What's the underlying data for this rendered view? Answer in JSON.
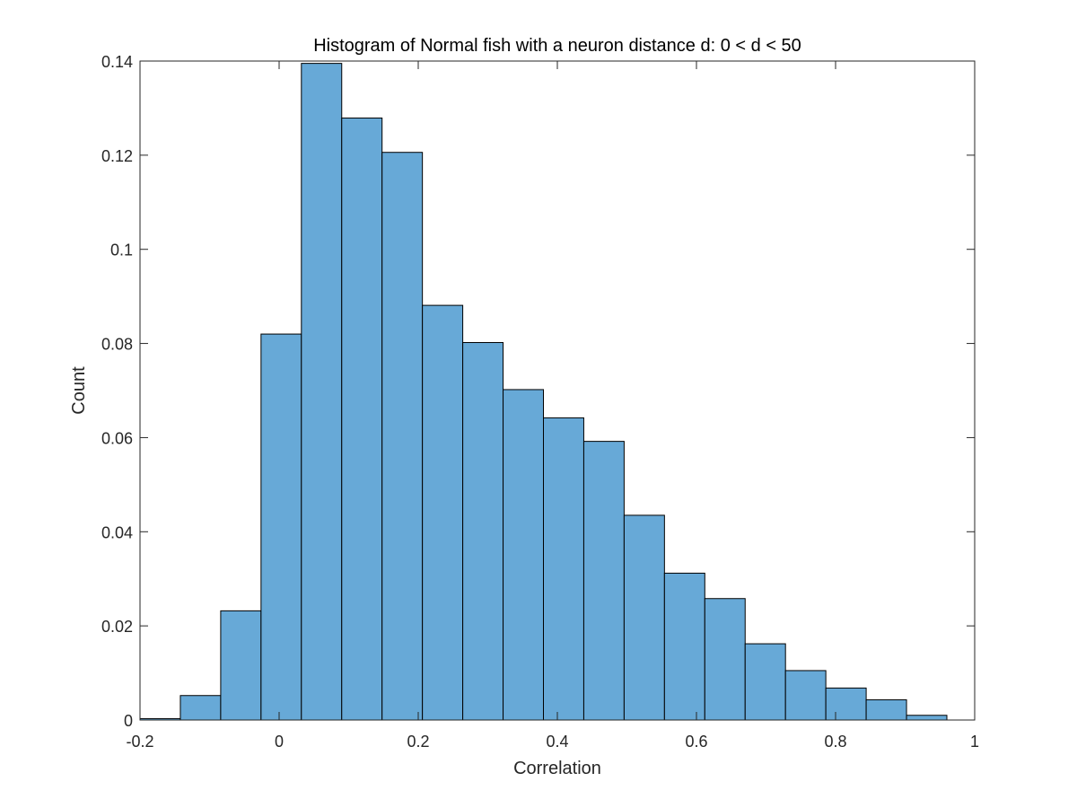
{
  "chart_data": {
    "type": "bar",
    "title": "Histogram of Normal fish with a neuron distance d: 0 < d < 50",
    "xlabel": "Correlation",
    "ylabel": "Count",
    "xlim": [
      -0.2,
      1
    ],
    "ylim": [
      0,
      0.14
    ],
    "grid": false,
    "bin_edges": [
      -0.2,
      -0.142,
      -0.084,
      -0.026,
      0.032,
      0.09,
      0.148,
      0.206,
      0.264,
      0.322,
      0.38,
      0.438,
      0.496,
      0.554,
      0.612,
      0.67,
      0.728,
      0.786,
      0.844,
      0.902,
      0.96
    ],
    "values": [
      0.0003,
      0.0052,
      0.0232,
      0.082,
      0.1395,
      0.1279,
      0.1206,
      0.0881,
      0.0802,
      0.0702,
      0.0642,
      0.0592,
      0.0435,
      0.0312,
      0.0258,
      0.0162,
      0.0105,
      0.0068,
      0.0043,
      0.001
    ],
    "xticks": [
      -0.2,
      0,
      0.2,
      0.4,
      0.6,
      0.8,
      1
    ],
    "xtick_labels": [
      "-0.2",
      "0",
      "0.2",
      "0.4",
      "0.6",
      "0.8",
      "1"
    ],
    "yticks": [
      0,
      0.02,
      0.04,
      0.06,
      0.08,
      0.1,
      0.12,
      0.14
    ],
    "ytick_labels": [
      "0",
      "0.02",
      "0.04",
      "0.06",
      "0.08",
      "0.1",
      "0.12",
      "0.14"
    ],
    "bar_color": "#67a9d7",
    "edge_color": "#000000"
  }
}
